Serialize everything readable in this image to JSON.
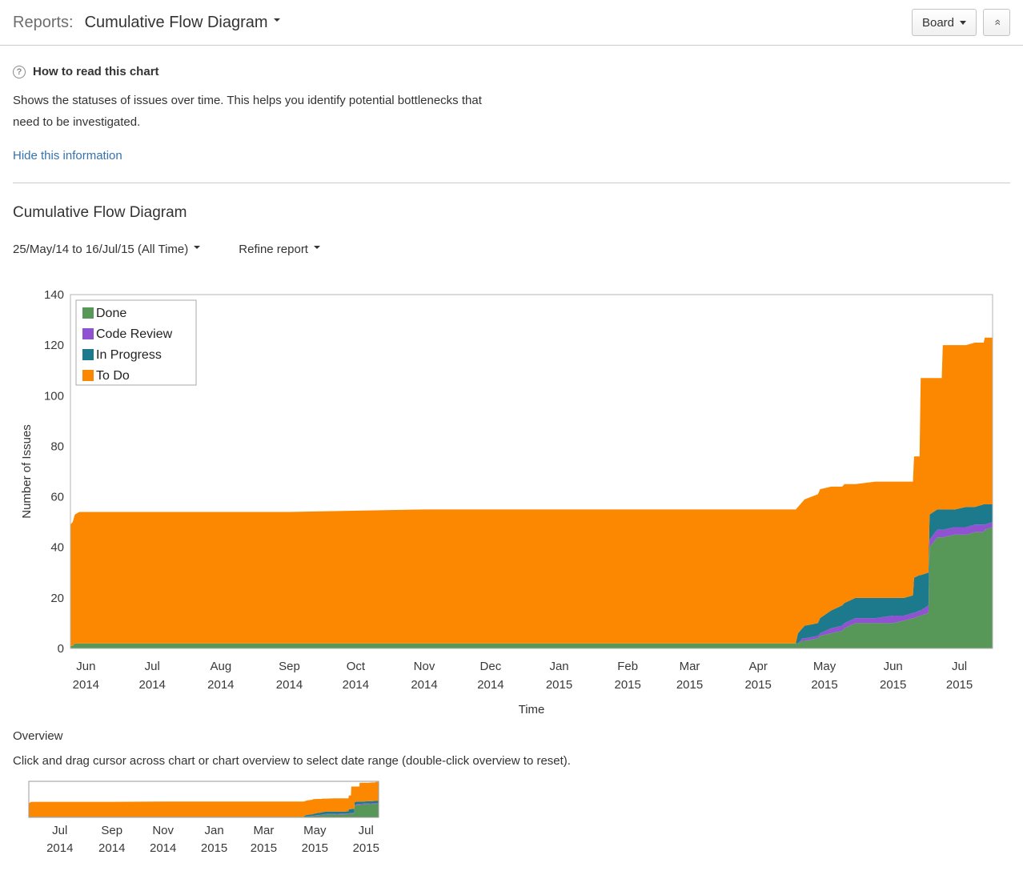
{
  "header": {
    "reports_label": "Reports:",
    "report_title": "Cumulative Flow Diagram",
    "board_button": "Board"
  },
  "icons": {
    "help_glyph": "?",
    "collapse_glyph": "»"
  },
  "info": {
    "title": "How to read this chart",
    "description": "Shows the statuses of issues over time. This helps you identify potential bottlenecks that need to be investigated.",
    "hide_link": "Hide this information"
  },
  "report": {
    "title": "Cumulative Flow Diagram",
    "date_range": "25/May/14 to 16/Jul/15 (All Time)",
    "refine_label": "Refine report"
  },
  "overview": {
    "title": "Overview",
    "instructions": "Click and drag cursor across chart or chart overview to select date range (double-click overview to reset)."
  },
  "chart_data": {
    "type": "area",
    "stacked": true,
    "title": "Cumulative Flow Diagram",
    "xlabel": "Time",
    "ylabel": "Number of Issues",
    "ylim": [
      0,
      140
    ],
    "y_ticks": [
      0,
      20,
      40,
      60,
      80,
      100,
      120,
      140
    ],
    "overview_ylim": [
      0,
      125
    ],
    "x_axis_unit": "days since 25/May/14",
    "x_days": [
      0,
      1,
      2,
      4,
      37,
      99,
      160,
      280,
      311,
      328,
      329,
      331,
      332,
      338,
      339,
      344,
      349,
      350,
      355,
      364,
      372,
      377,
      381,
      381.5,
      384,
      384.5,
      388,
      388.5,
      392,
      394,
      394.5,
      400,
      405,
      409,
      413,
      413.5,
      417
    ],
    "series": [
      {
        "name": "Done",
        "color": "#579758",
        "values": [
          1,
          1,
          2,
          2,
          2,
          2,
          2,
          2,
          2,
          2,
          2,
          3,
          3,
          4,
          5,
          6,
          7,
          8,
          10,
          10,
          10,
          11,
          12,
          12,
          13,
          13,
          14,
          40,
          44,
          44,
          44,
          45,
          45,
          46,
          46,
          47,
          48
        ]
      },
      {
        "name": "Code Review",
        "color": "#8f52d1",
        "values": [
          0,
          0,
          0,
          0,
          0,
          0,
          0,
          0,
          0,
          0,
          0,
          1,
          1,
          1,
          1,
          2,
          2,
          2,
          2,
          2,
          3,
          2,
          2,
          2,
          2,
          2,
          3,
          3,
          3,
          3,
          3,
          3,
          3,
          3,
          3,
          2,
          2
        ]
      },
      {
        "name": "In Progress",
        "color": "#1d7a8c",
        "values": [
          0,
          0,
          0,
          0,
          0,
          0,
          0,
          0,
          0,
          0,
          4,
          4,
          5,
          5,
          6,
          7,
          8,
          8,
          8,
          8,
          7,
          7,
          7,
          14,
          14,
          14,
          13,
          10,
          8,
          8,
          8,
          7,
          8,
          7,
          8,
          8,
          7
        ]
      },
      {
        "name": "To Do",
        "color": "#fb8800",
        "values": [
          48,
          49,
          51,
          52,
          52,
          52,
          53,
          53,
          53,
          53,
          50,
          50,
          50,
          51,
          51,
          49,
          47,
          47,
          45,
          46,
          46,
          46,
          45,
          48,
          47,
          78,
          77,
          54,
          52,
          52,
          65,
          65,
          64,
          65,
          64,
          66,
          66
        ]
      }
    ],
    "legend_order": [
      "Done",
      "Code Review",
      "In Progress",
      "To Do"
    ],
    "legend_position": "top-left",
    "x_ticks_main": [
      {
        "day": 7,
        "month": "Jun",
        "year": "2014"
      },
      {
        "day": 37,
        "month": "Jul",
        "year": "2014"
      },
      {
        "day": 68,
        "month": "Aug",
        "year": "2014"
      },
      {
        "day": 99,
        "month": "Sep",
        "year": "2014"
      },
      {
        "day": 129,
        "month": "Oct",
        "year": "2014"
      },
      {
        "day": 160,
        "month": "Nov",
        "year": "2014"
      },
      {
        "day": 190,
        "month": "Dec",
        "year": "2014"
      },
      {
        "day": 221,
        "month": "Jan",
        "year": "2015"
      },
      {
        "day": 252,
        "month": "Feb",
        "year": "2015"
      },
      {
        "day": 280,
        "month": "Mar",
        "year": "2015"
      },
      {
        "day": 311,
        "month": "Apr",
        "year": "2015"
      },
      {
        "day": 341,
        "month": "May",
        "year": "2015"
      },
      {
        "day": 372,
        "month": "Jun",
        "year": "2015"
      },
      {
        "day": 402,
        "month": "Jul",
        "year": "2015"
      }
    ],
    "x_ticks_overview": [
      {
        "day": 37,
        "month": "Jul",
        "year": "2014"
      },
      {
        "day": 99,
        "month": "Sep",
        "year": "2014"
      },
      {
        "day": 160,
        "month": "Nov",
        "year": "2014"
      },
      {
        "day": 221,
        "month": "Jan",
        "year": "2015"
      },
      {
        "day": 280,
        "month": "Mar",
        "year": "2015"
      },
      {
        "day": 341,
        "month": "May",
        "year": "2015"
      },
      {
        "day": 402,
        "month": "Jul",
        "year": "2015"
      }
    ]
  }
}
